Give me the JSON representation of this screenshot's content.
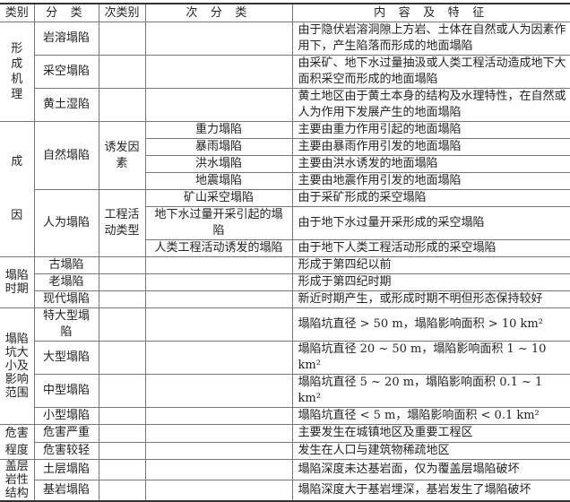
{
  "header": [
    "类别",
    "分 类",
    "次类别",
    "次 分 类",
    "内 容 及 特 征"
  ],
  "groups": [
    {
      "category": "形成机理",
      "style": "v1",
      "rows": [
        {
          "cls": "岩溶塌陷",
          "desc": "由于隐伏岩溶洞隙上方岩、土体在自然或人为因素作用下，产生陷落而形成的地面塌陷",
          "two": true
        },
        {
          "cls": "采空塌陷",
          "desc": "由采矿、地下水过量抽汲或人类工程活动造成地下大面积采空而形成的地面塌陷",
          "two": true
        },
        {
          "cls": "黄土湿陷",
          "desc": "黄土地区由于黄土本身的结构及水理特性，在自然或人为作用下发展产生的地面塌陷",
          "two": true
        }
      ]
    },
    {
      "category": "成因",
      "style": "gap",
      "subgroups": [
        {
          "cls": "自然塌陷",
          "subcat": "诱发因素",
          "rows": [
            {
              "sub": "重力塌陷",
              "desc": "主要由重力作用引起的地面塌陷"
            },
            {
              "sub": "暴雨塌陷",
              "desc": "主要由暴雨作用引发的地面塌陷"
            },
            {
              "sub": "洪水塌陷",
              "desc": "主要由洪水诱发的地面塌陷"
            },
            {
              "sub": "地震塌陷",
              "desc": "主要由地震作用引发的地面塌陷"
            }
          ]
        },
        {
          "cls": "人为塌陷",
          "subcat": "工程活动类型",
          "rows": [
            {
              "sub": "矿山采空塌陷",
              "desc": "由于采矿形成的采空塌陷"
            },
            {
              "sub": "地下水过量开采引起的塌陷",
              "desc": "由于地下水过量开采形成的采空塌陷"
            },
            {
              "sub": "人类工程活动诱发的塌陷",
              "desc": "由于地下人类工程活动形成的采空塌陷"
            }
          ]
        }
      ]
    },
    {
      "category": "塌陷时期",
      "style": "",
      "rows": [
        {
          "cls": "古塌陷",
          "desc": "形成于第四纪以前"
        },
        {
          "cls": "老塌陷",
          "desc": "形成于第四纪时期"
        },
        {
          "cls": "现代塌陷",
          "desc": "新近时期产生，或形成时期不明但形态保持较好"
        }
      ]
    },
    {
      "category": "塌陷坑大小及影响范围",
      "style": "",
      "rows": [
        {
          "cls": "特大型塌陷",
          "desc": "塌陷坑直径 > 50 m，塌陷影响面积 > 10 km²"
        },
        {
          "cls": "大型塌陷",
          "desc": "塌陷坑直径 20 ~ 50 m，塌陷影响面积 1 ~ 10 km²"
        },
        {
          "cls": "中型塌陷",
          "desc": "塌陷坑直径 5 ~ 20 m，塌陷影响面积 0.1 ~ 1 km²"
        },
        {
          "cls": "小型塌陷",
          "desc": "塌陷坑直径 < 5 m，塌陷影响面积 < 0.1 km²"
        }
      ]
    },
    {
      "category": "危害程度",
      "style": "gap2",
      "rows": [
        {
          "cls": "危害严重",
          "desc": "主要发生在城镇地区及重要工程区"
        },
        {
          "cls": "危害较轻",
          "desc": "发生在人口与建筑物稀疏地区"
        }
      ]
    },
    {
      "category": "盖层岩性结构",
      "style": "",
      "rows": [
        {
          "cls": "土层塌陷",
          "desc": "塌陷深度未达基岩面，仅为覆盖层塌陷破坏",
          "tall": true
        },
        {
          "cls": "基岩塌陷",
          "desc": "塌陷深度大于基岩埋深，基岩发生了塌陷破坏",
          "tall": true
        }
      ]
    }
  ]
}
